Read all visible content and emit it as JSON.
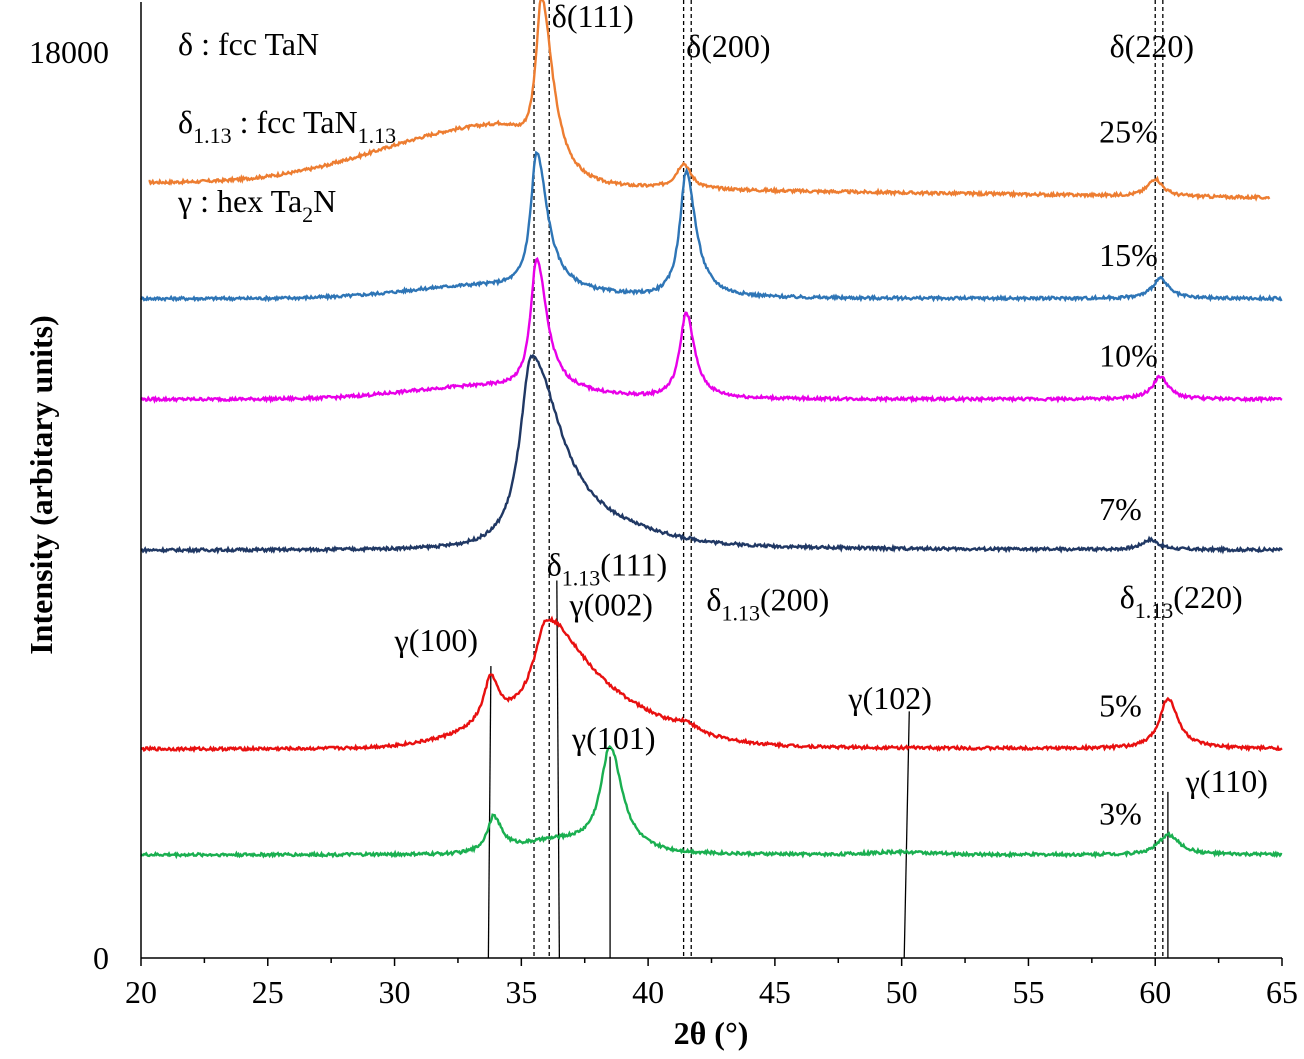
{
  "chart_data": {
    "type": "line",
    "xlabel": "2θ (°)",
    "ylabel": "Intensity (arbitary units)",
    "xlim": [
      20,
      65
    ],
    "ylim": [
      0,
      18000
    ],
    "xticks": [
      "20",
      "25",
      "30",
      "35",
      "40",
      "45",
      "50",
      "55",
      "60",
      "65"
    ],
    "yticks": [
      "0",
      "18000"
    ],
    "grid": false,
    "legend": [
      {
        "symbol": "δ",
        "sub": "",
        "desc": "fcc TaN",
        "desc_sub": "",
        "desc_tail": ""
      },
      {
        "symbol": "δ",
        "sub": "1.13",
        "desc": "fcc TaN",
        "desc_sub": "1.13",
        "desc_tail": ""
      },
      {
        "symbol": "γ",
        "sub": "",
        "desc": "hex Ta",
        "desc_sub": "2",
        "desc_tail": "N"
      }
    ],
    "series": [
      {
        "name": "25%",
        "color": "#ED7D31",
        "baseline": 15400,
        "label_at": [
          57,
          16200
        ],
        "peaks": [
          [
            35.8,
            3300,
            0.28,
            0.9,
            0
          ],
          [
            41.4,
            500,
            0.35,
            0,
            0
          ],
          [
            60.0,
            350,
            0.35,
            0,
            0
          ]
        ],
        "broad": [
          [
            34.0,
            1200,
            4.5,
            1.4
          ]
        ],
        "slope": -300
      },
      {
        "name": "15%",
        "color": "#2E75B6",
        "baseline": 13100,
        "label_at": [
          57,
          13750
        ],
        "peaks": [
          [
            35.6,
            2700,
            0.28,
            0.8,
            0
          ],
          [
            41.5,
            2500,
            0.3,
            0.5,
            0
          ],
          [
            60.2,
            400,
            0.38,
            0,
            0
          ]
        ],
        "broad": [
          [
            33.5,
            250,
            3.0,
            0
          ]
        ],
        "slope": 0
      },
      {
        "name": "10%",
        "color": "#E800E8",
        "baseline": 11100,
        "label_at": [
          57,
          11750
        ],
        "peaks": [
          [
            35.6,
            2600,
            0.28,
            0.7,
            0
          ],
          [
            41.5,
            1700,
            0.3,
            0.3,
            0
          ],
          [
            60.2,
            450,
            0.38,
            0,
            0
          ]
        ],
        "broad": [
          [
            33.5,
            250,
            3.0,
            0
          ]
        ],
        "slope": 0
      },
      {
        "name": "7%",
        "color": "#203864",
        "baseline": 8100,
        "label_at": [
          57,
          8700
        ],
        "peaks": [
          [
            35.4,
            3800,
            0.55,
            1.6,
            0
          ],
          [
            59.8,
            200,
            0.4,
            0,
            0
          ]
        ],
        "broad": [
          [
            38.5,
            150,
            2.0,
            0
          ]
        ],
        "slope": 0
      },
      {
        "name": "5%",
        "color": "#E81010",
        "baseline": 4150,
        "label_at": [
          57,
          4800
        ],
        "peaks": [
          [
            33.8,
            900,
            0.35,
            0,
            0
          ],
          [
            36.0,
            1800,
            0.6,
            1.8,
            0
          ],
          [
            41.5,
            150,
            0.5,
            0,
            0
          ],
          [
            60.5,
            1000,
            0.4,
            0.2,
            0
          ]
        ],
        "broad": [
          [
            37.0,
            800,
            3.0,
            0
          ]
        ],
        "slope": 0
      },
      {
        "name": "3%",
        "color": "#1AAF50",
        "baseline": 2050,
        "label_at": [
          57,
          2650
        ],
        "peaks": [
          [
            33.9,
            700,
            0.3,
            0.3,
            0
          ],
          [
            38.5,
            2050,
            0.45,
            0.3,
            0
          ],
          [
            60.5,
            400,
            0.45,
            0.2,
            0
          ]
        ],
        "broad": [
          [
            36.5,
            250,
            1.5,
            0
          ],
          [
            50.0,
            50,
            1.2,
            0
          ]
        ],
        "slope": 0
      }
    ],
    "reference_lines": {
      "dashed": [
        35.5,
        41.4,
        60.0,
        36.1,
        41.7,
        60.3
      ],
      "solid": [
        [
          33.7,
          0,
          33.8,
          5800
        ],
        [
          36.5,
          0,
          36.4,
          7500
        ],
        [
          38.5,
          0,
          38.5,
          4000
        ],
        [
          50.1,
          0,
          50.3,
          4900
        ],
        [
          60.5,
          0,
          60.5,
          3300
        ]
      ]
    },
    "annotations": [
      {
        "main": "δ",
        "sub": "",
        "tail": "(111)",
        "x": 36.2,
        "y": 18500
      },
      {
        "main": "δ",
        "sub": "",
        "tail": "(200)",
        "x": 41.5,
        "y": 17900
      },
      {
        "main": "δ",
        "sub": "",
        "tail": "(220)",
        "x": 58.2,
        "y": 17900
      },
      {
        "main": "δ",
        "sub": "1.13",
        "tail": "(111)",
        "x": 36.0,
        "y": 7600
      },
      {
        "main": "δ",
        "sub": "1.13",
        "tail": "(200)",
        "x": 42.3,
        "y": 6900
      },
      {
        "main": "δ",
        "sub": "1.13",
        "tail": "(220)",
        "x": 58.6,
        "y": 6950
      },
      {
        "main": "γ",
        "sub": "",
        "tail": "(100)",
        "x": 30.0,
        "y": 6100
      },
      {
        "main": "γ",
        "sub": "",
        "tail": "(002)",
        "x": 36.9,
        "y": 6800
      },
      {
        "main": "γ",
        "sub": "",
        "tail": "(101)",
        "x": 37.0,
        "y": 4150
      },
      {
        "main": "γ",
        "sub": "",
        "tail": "(102)",
        "x": 47.9,
        "y": 4950
      },
      {
        "main": "γ",
        "sub": "",
        "tail": "(110)",
        "x": 61.2,
        "y": 3300
      }
    ]
  }
}
